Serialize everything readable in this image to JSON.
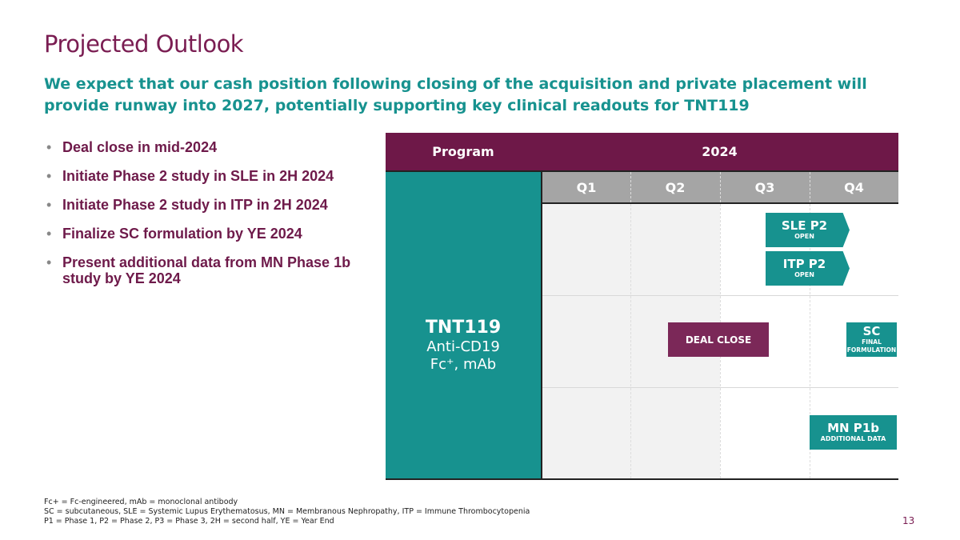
{
  "title": "Projected Outlook",
  "subtitle": "We expect that our cash position following closing of the acquisition and private placement will provide runway into 2027, potentially supporting key clinical readouts for TNT119",
  "bullets": [
    "Deal close in mid-2024",
    "Initiate Phase 2 study in SLE in 2H 2024",
    "Initiate Phase 2 study in ITP in 2H 2024",
    "Finalize SC formulation by YE 2024",
    "Present additional data from MN Phase 1b study by YE 2024"
  ],
  "table": {
    "program_header": "Program",
    "year_header": "2024",
    "quarters": [
      "Q1",
      "Q2",
      "Q3",
      "Q4"
    ],
    "program": {
      "name": "TNT119",
      "target": "Anti-CD19",
      "format": "Fc⁺, mAb"
    },
    "milestones": {
      "sle": {
        "title": "SLE P2",
        "sub": "OPEN"
      },
      "itp": {
        "title": "ITP P2",
        "sub": "OPEN"
      },
      "deal": {
        "title": "DEAL CLOSE"
      },
      "sc": {
        "title": "SC",
        "sub": "FINAL FORMULATION"
      },
      "mn": {
        "title": "MN P1b",
        "sub": "ADDITIONAL DATA"
      }
    }
  },
  "footer": [
    "Fc+ = Fc-engineered, mAb = monoclonal antibody",
    "SC = subcutaneous, SLE = Systemic Lupus Erythematosus, MN = Membranous Nephropathy, ITP = Immune Thrombocytopenia",
    "P1 = Phase 1, P2 = Phase 2, P3 = Phase 3, 2H = second half, YE = Year End"
  ],
  "page_number": "13",
  "colors": {
    "purple": "#6e1848",
    "teal": "#17928f",
    "gray": "#a5a5a5"
  }
}
